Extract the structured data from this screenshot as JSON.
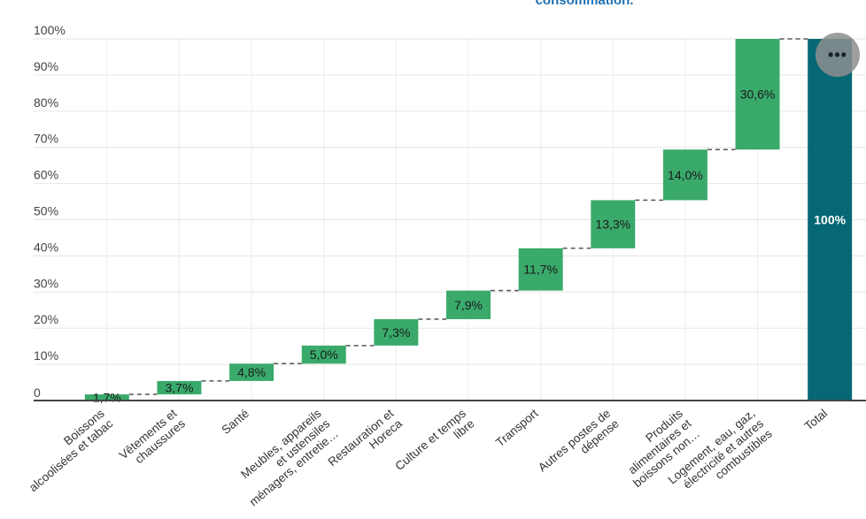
{
  "chart_data": {
    "type": "bar",
    "subtype": "waterfall",
    "title": "consommation.",
    "y_ticks": [
      "0",
      "10%",
      "20%",
      "30%",
      "40%",
      "50%",
      "60%",
      "70%",
      "80%",
      "90%",
      "100%"
    ],
    "ylim": [
      0,
      100
    ],
    "grid": true,
    "categories": [
      [
        "Boissons",
        "alcoolisées et tabac"
      ],
      [
        "Vêtements et",
        "chaussures"
      ],
      [
        "Santé"
      ],
      [
        "Meubles, appareils",
        "et ustensiles",
        "ménagers, entretie…"
      ],
      [
        "Restauration et",
        "Horeca"
      ],
      [
        "Culture et temps",
        "libre"
      ],
      [
        "Transport"
      ],
      [
        "Autres postes de",
        "dépense"
      ],
      [
        "Produits",
        "alimentaires et",
        "boissons non…"
      ],
      [
        "Logement, eau, gaz,",
        "électricité et autres",
        "combustibles"
      ],
      [
        "Total"
      ]
    ],
    "values": [
      1.7,
      3.7,
      4.8,
      5.0,
      7.3,
      7.9,
      11.7,
      13.3,
      14.0,
      30.6,
      100
    ],
    "labels": [
      "1,7%",
      "3,7%",
      "4,8%",
      "5,0%",
      "7,3%",
      "7,9%",
      "11,7%",
      "13,3%",
      "14,0%",
      "30,6%",
      "100%"
    ],
    "colors": {
      "step": "#3aaa6b",
      "total": "#066874",
      "connector": "#555555"
    }
  },
  "menu_icon": "more-horizontal-icon",
  "menu_label": "•••"
}
